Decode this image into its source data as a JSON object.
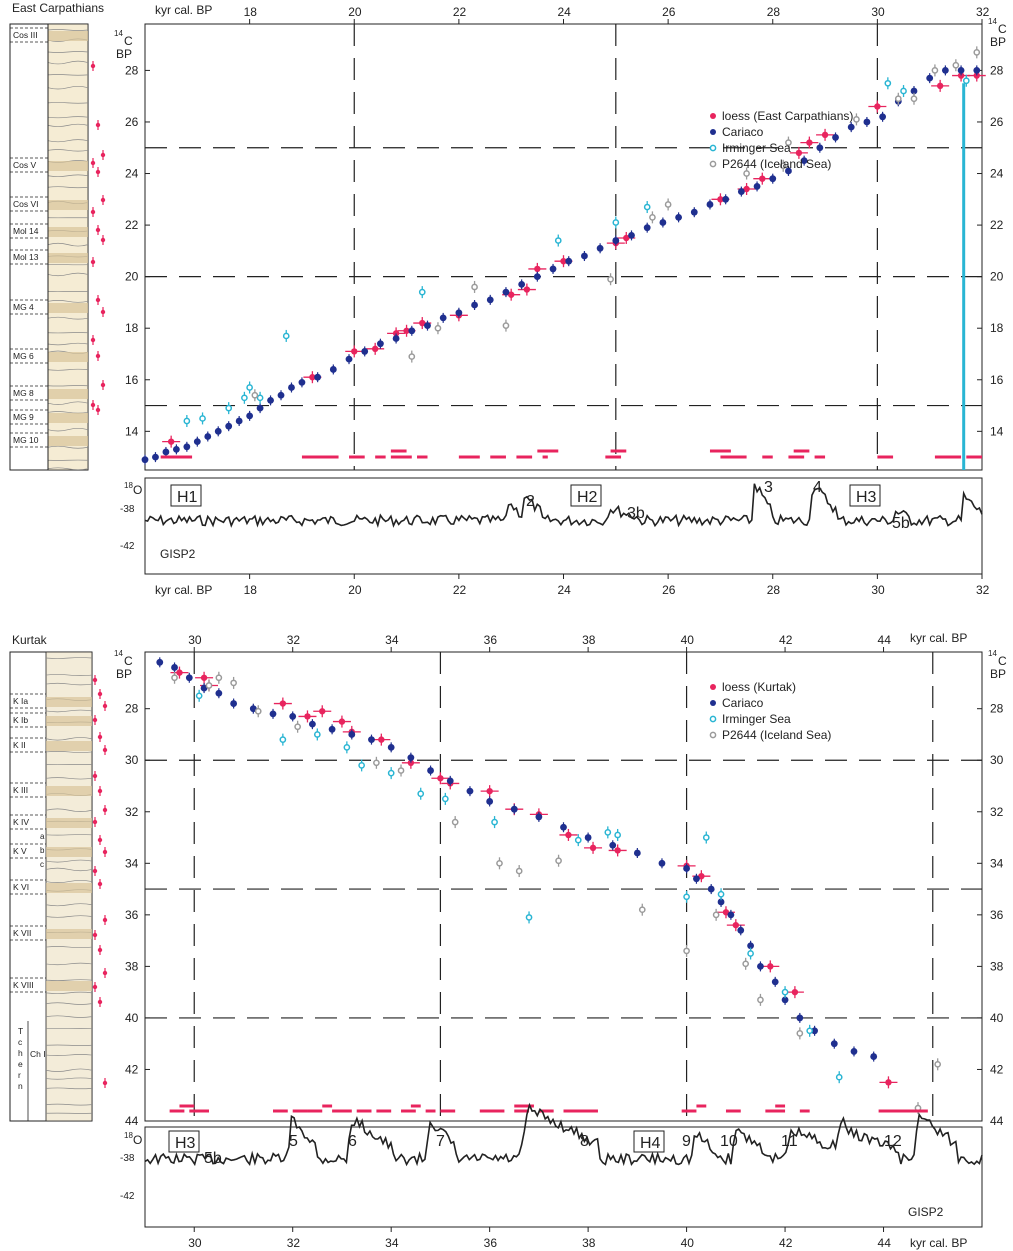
{
  "colors": {
    "loess": "#e8245e",
    "cariaco": "#1f2f8f",
    "irminger": "#29b5d3",
    "p2644": "#9a9a9a"
  },
  "chart_data": [
    {
      "type": "scatter",
      "panel_title": "East Carpathians",
      "top_axis_label": "kyr cal. BP",
      "bottom_axis_label": "kyr cal. BP",
      "y_axis_label": "14C BP",
      "xlim": [
        16,
        32
      ],
      "ylim": [
        29.8,
        12.5
      ],
      "x_ticks": [
        18,
        20,
        22,
        24,
        26,
        28,
        30,
        32
      ],
      "y_ticks": [
        14,
        16,
        18,
        20,
        22,
        24,
        26,
        28
      ],
      "legend": [
        "loess (East Carpathians)",
        "Cariaco",
        "Irminger Sea",
        "P2644 (Iceland Sea)"
      ],
      "legend_position": "top-right",
      "dashed_grid_x": [
        20,
        25,
        30
      ],
      "dashed_grid_y": [
        15,
        20,
        25
      ],
      "series": [
        {
          "name": "loess (East Carpathians)",
          "points": [
            [
              16.5,
              13.6
            ],
            [
              19.2,
              16.1
            ],
            [
              20,
              17.1
            ],
            [
              20.4,
              17.2
            ],
            [
              20.8,
              17.8
            ],
            [
              21,
              17.9
            ],
            [
              21.3,
              18.2
            ],
            [
              22,
              18.5
            ],
            [
              23,
              19.3
            ],
            [
              23.3,
              19.5
            ],
            [
              23.5,
              20.3
            ],
            [
              24,
              20.6
            ],
            [
              25,
              21.3
            ],
            [
              25.2,
              21.5
            ],
            [
              27,
              23
            ],
            [
              27.5,
              23.4
            ],
            [
              27.8,
              23.8
            ],
            [
              28.5,
              24.8
            ],
            [
              28.7,
              25.2
            ],
            [
              29,
              25.5
            ],
            [
              30,
              26.6
            ],
            [
              31.2,
              27.4
            ],
            [
              31.6,
              27.8
            ],
            [
              31.9,
              27.8
            ]
          ]
        },
        {
          "name": "Cariaco",
          "points": [
            [
              16,
              12.9
            ],
            [
              16.2,
              13
            ],
            [
              16.4,
              13.2
            ],
            [
              16.6,
              13.3
            ],
            [
              16.8,
              13.4
            ],
            [
              17,
              13.6
            ],
            [
              17.2,
              13.8
            ],
            [
              17.4,
              14
            ],
            [
              17.6,
              14.2
            ],
            [
              17.8,
              14.4
            ],
            [
              18,
              14.6
            ],
            [
              18.2,
              14.9
            ],
            [
              18.4,
              15.2
            ],
            [
              18.6,
              15.4
            ],
            [
              18.8,
              15.7
            ],
            [
              19,
              15.9
            ],
            [
              19.3,
              16.1
            ],
            [
              19.6,
              16.4
            ],
            [
              19.9,
              16.8
            ],
            [
              20.2,
              17.1
            ],
            [
              20.5,
              17.4
            ],
            [
              20.8,
              17.6
            ],
            [
              21.1,
              17.9
            ],
            [
              21.4,
              18.1
            ],
            [
              21.7,
              18.4
            ],
            [
              22,
              18.6
            ],
            [
              22.3,
              18.9
            ],
            [
              22.6,
              19.1
            ],
            [
              22.9,
              19.4
            ],
            [
              23.2,
              19.7
            ],
            [
              23.5,
              20
            ],
            [
              23.8,
              20.3
            ],
            [
              24.1,
              20.6
            ],
            [
              24.4,
              20.8
            ],
            [
              24.7,
              21.1
            ],
            [
              25,
              21.4
            ],
            [
              25.3,
              21.6
            ],
            [
              25.6,
              21.9
            ],
            [
              25.9,
              22.1
            ],
            [
              26.2,
              22.3
            ],
            [
              26.5,
              22.5
            ],
            [
              26.8,
              22.8
            ],
            [
              27.1,
              23
            ],
            [
              27.4,
              23.3
            ],
            [
              27.7,
              23.5
            ],
            [
              28,
              23.8
            ],
            [
              28.3,
              24.1
            ],
            [
              28.6,
              24.5
            ],
            [
              28.9,
              25
            ],
            [
              29.2,
              25.4
            ],
            [
              29.5,
              25.8
            ],
            [
              29.8,
              26
            ],
            [
              30.1,
              26.2
            ],
            [
              30.4,
              26.8
            ],
            [
              30.7,
              27.2
            ],
            [
              31,
              27.7
            ],
            [
              31.3,
              28
            ],
            [
              31.6,
              28
            ],
            [
              31.9,
              28
            ]
          ]
        },
        {
          "name": "Irminger Sea",
          "points": [
            [
              16.8,
              14.4
            ],
            [
              17.1,
              14.5
            ],
            [
              17.6,
              14.9
            ],
            [
              17.9,
              15.3
            ],
            [
              18,
              15.7
            ],
            [
              18.2,
              15.3
            ],
            [
              18.7,
              17.7
            ],
            [
              21.3,
              19.4
            ],
            [
              23.9,
              21.4
            ],
            [
              25,
              22.1
            ],
            [
              25.6,
              22.7
            ],
            [
              30.2,
              27.5
            ],
            [
              30.5,
              27.2
            ],
            [
              31.7,
              27.6
            ]
          ]
        },
        {
          "name": "P2644 (Iceland Sea)",
          "points": [
            [
              18.1,
              15.4
            ],
            [
              21.1,
              16.9
            ],
            [
              21.6,
              18
            ],
            [
              22.3,
              19.6
            ],
            [
              22.9,
              18.1
            ],
            [
              24.9,
              19.9
            ],
            [
              25.7,
              22.3
            ],
            [
              26,
              22.8
            ],
            [
              27.5,
              24
            ],
            [
              28.2,
              24.3
            ],
            [
              28.3,
              25.2
            ],
            [
              29.6,
              26.1
            ],
            [
              30.4,
              26.9
            ],
            [
              30.7,
              26.9
            ],
            [
              31.1,
              28
            ],
            [
              31.5,
              28.2
            ],
            [
              31.9,
              28.7
            ]
          ]
        }
      ]
    },
    {
      "type": "scatter",
      "panel_title": "Kurtak",
      "top_axis_label": "kyr cal. BP",
      "bottom_axis_label": "kyr cal. BP",
      "y_axis_label": "14C BP",
      "xlim": [
        29,
        46
      ],
      "ylim": [
        25.8,
        44
      ],
      "x_ticks": [
        30,
        32,
        34,
        36,
        38,
        40,
        42,
        44
      ],
      "y_ticks": [
        28,
        30,
        32,
        34,
        36,
        38,
        40,
        42,
        44
      ],
      "legend": [
        "loess (Kurtak)",
        "Cariaco",
        "Irminger Sea",
        "P2644 (Iceland Sea)"
      ],
      "legend_position": "top-right",
      "dashed_grid_x": [
        30,
        35,
        40,
        45
      ],
      "dashed_grid_y": [
        30,
        35,
        40
      ],
      "series": [
        {
          "name": "loess (Kurtak)",
          "points": [
            [
              29.7,
              26.6
            ],
            [
              30.2,
              26.8
            ],
            [
              30.3,
              27.1
            ],
            [
              31.8,
              27.8
            ],
            [
              32.3,
              28.3
            ],
            [
              32.6,
              28.1
            ],
            [
              33,
              28.5
            ],
            [
              33.2,
              28.9
            ],
            [
              33.8,
              29.2
            ],
            [
              34.4,
              30.1
            ],
            [
              35,
              30.7
            ],
            [
              35.2,
              30.9
            ],
            [
              36,
              31.2
            ],
            [
              36.5,
              31.9
            ],
            [
              37,
              32.1
            ],
            [
              37.6,
              32.9
            ],
            [
              38.1,
              33.4
            ],
            [
              38.6,
              33.5
            ],
            [
              40,
              34.1
            ],
            [
              40.3,
              34.5
            ],
            [
              40.8,
              35.9
            ],
            [
              41,
              36.4
            ],
            [
              41.7,
              38
            ],
            [
              42.2,
              39
            ],
            [
              44.1,
              42.5
            ]
          ]
        },
        {
          "name": "Cariaco",
          "points": [
            [
              29.3,
              26.2
            ],
            [
              29.6,
              26.4
            ],
            [
              29.9,
              26.8
            ],
            [
              30.2,
              27.2
            ],
            [
              30.5,
              27.4
            ],
            [
              30.8,
              27.8
            ],
            [
              31.2,
              28
            ],
            [
              31.6,
              28.2
            ],
            [
              32,
              28.3
            ],
            [
              32.4,
              28.6
            ],
            [
              32.8,
              28.8
            ],
            [
              33.2,
              29
            ],
            [
              33.6,
              29.2
            ],
            [
              34,
              29.5
            ],
            [
              34.4,
              29.9
            ],
            [
              34.8,
              30.4
            ],
            [
              35.2,
              30.8
            ],
            [
              35.6,
              31.2
            ],
            [
              36,
              31.6
            ],
            [
              36.5,
              31.9
            ],
            [
              37,
              32.2
            ],
            [
              37.5,
              32.6
            ],
            [
              38,
              33
            ],
            [
              38.5,
              33.3
            ],
            [
              39,
              33.6
            ],
            [
              39.5,
              34
            ],
            [
              40,
              34.2
            ],
            [
              40.2,
              34.6
            ],
            [
              40.5,
              35
            ],
            [
              40.7,
              35.5
            ],
            [
              40.9,
              36
            ],
            [
              41.1,
              36.6
            ],
            [
              41.3,
              37.2
            ],
            [
              41.5,
              38
            ],
            [
              41.8,
              38.6
            ],
            [
              42,
              39.3
            ],
            [
              42.3,
              40
            ],
            [
              42.6,
              40.5
            ],
            [
              43,
              41
            ],
            [
              43.4,
              41.3
            ],
            [
              43.8,
              41.5
            ]
          ]
        },
        {
          "name": "Irminger Sea",
          "points": [
            [
              30.1,
              27.5
            ],
            [
              31.8,
              29.2
            ],
            [
              32.5,
              29
            ],
            [
              33.1,
              29.5
            ],
            [
              33.4,
              30.2
            ],
            [
              34,
              30.5
            ],
            [
              34.6,
              31.3
            ],
            [
              35.1,
              31.5
            ],
            [
              36.1,
              32.4
            ],
            [
              36.8,
              36.1
            ],
            [
              37.8,
              33.1
            ],
            [
              38.4,
              32.8
            ],
            [
              38.6,
              32.9
            ],
            [
              40,
              35.3
            ],
            [
              40.4,
              33
            ],
            [
              40.7,
              35.2
            ],
            [
              41.3,
              37.5
            ],
            [
              42,
              39
            ],
            [
              42.5,
              40.5
            ],
            [
              43.1,
              42.3
            ]
          ]
        },
        {
          "name": "P2644 (Iceland Sea)",
          "points": [
            [
              29.6,
              26.8
            ],
            [
              30.3,
              27.1
            ],
            [
              30.5,
              26.8
            ],
            [
              30.8,
              27
            ],
            [
              31.3,
              28.1
            ],
            [
              32.1,
              28.7
            ],
            [
              33.7,
              30.1
            ],
            [
              34.2,
              30.4
            ],
            [
              35.3,
              32.4
            ],
            [
              36.2,
              34
            ],
            [
              36.6,
              34.3
            ],
            [
              37.4,
              33.9
            ],
            [
              39.1,
              35.8
            ],
            [
              40,
              37.4
            ],
            [
              40.6,
              36
            ],
            [
              41.2,
              37.9
            ],
            [
              41.5,
              39.3
            ],
            [
              42.3,
              40.6
            ],
            [
              44.7,
              43.5
            ],
            [
              45.1,
              41.8
            ]
          ]
        }
      ]
    }
  ],
  "panels": {
    "top": {
      "title": "East Carpathians",
      "axis_top": "kyr cal. BP",
      "axis_bottom": "kyr cal. BP",
      "y_label_sup": "14",
      "y_label_main": "C",
      "y_label_sub": "BP",
      "core_units": [
        "Cos III",
        "Cos V",
        "Cos VI",
        "Mol 14",
        "Mol 13",
        "MG 4",
        "MG 6",
        "MG 8",
        "MG 9",
        "MG 10"
      ],
      "iso_label": "O",
      "iso_sup": "18",
      "iso_ticks": [
        "-38",
        "-42"
      ],
      "gisp": "GISP2",
      "events": {
        "h1": "H1",
        "h2": "H2",
        "h3": "H3",
        "e2": "2",
        "e3b": "3b",
        "e3": "3",
        "e4": "4",
        "e5b": "5b"
      },
      "legend": [
        "loess (East Carpathians)",
        "Cariaco",
        "Irminger Sea",
        "P2644 (Iceland Sea)"
      ]
    },
    "bottom": {
      "title": "Kurtak",
      "axis_top": "kyr cal. BP",
      "axis_bottom": "kyr cal. BP",
      "y_label_sup": "14",
      "y_label_main": "C",
      "y_label_sub": "BP",
      "core_units": [
        "K Ia",
        "K Ib",
        "K II",
        "K III",
        "K IV",
        "K V",
        "K VI",
        "K VII",
        "K VIII",
        "Ch I"
      ],
      "core_letters": [
        "a",
        "b",
        "c"
      ],
      "core_vertical": [
        "T",
        "c",
        "h",
        "e",
        "r",
        "n"
      ],
      "iso_label": "O",
      "iso_sup": "18",
      "iso_ticks": [
        "-38",
        "-42"
      ],
      "gisp": "GISP2",
      "events": {
        "h3": "H3",
        "h4": "H4",
        "e5b": "5b",
        "e5": "5",
        "e6": "6",
        "e7": "7",
        "e8": "8",
        "e9": "9",
        "e10": "10",
        "e11": "11",
        "e12": "12"
      },
      "legend": [
        "loess (Kurtak)",
        "Cariaco",
        "Irminger Sea",
        "P2644 (Iceland Sea)"
      ]
    }
  }
}
